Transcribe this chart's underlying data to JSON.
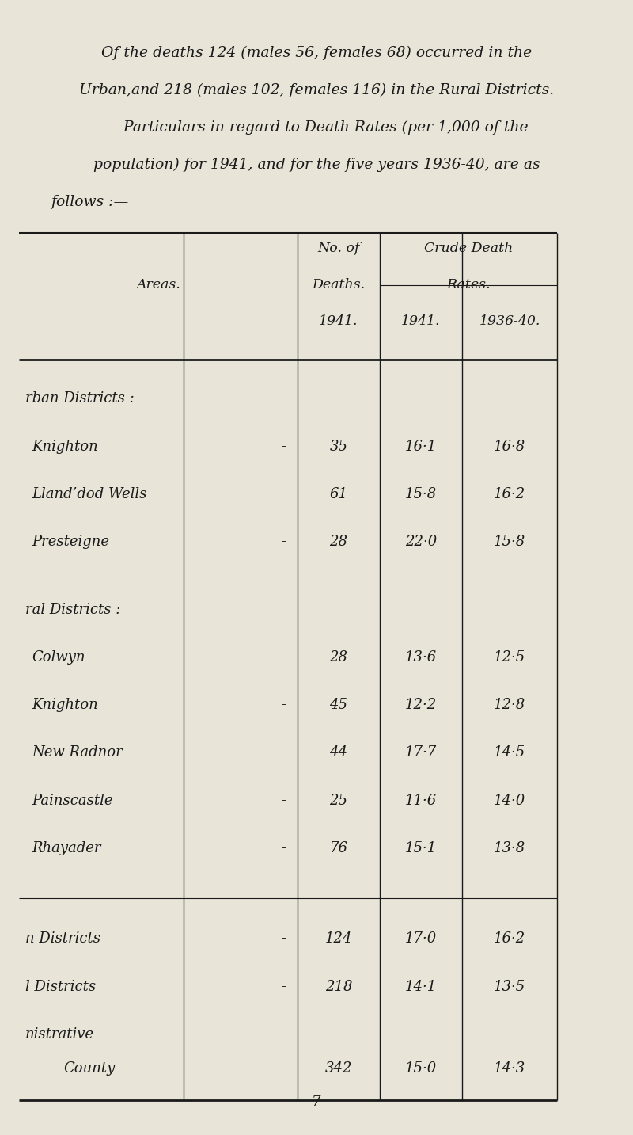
{
  "bg_color": "#e8e4d8",
  "text_color": "#1a1a1a",
  "intro_text": [
    "Of the deaths 124 (males 56, females 68) occurred in the",
    "Urban,and 218 (males 102, females 116) in the Rural Districts.",
    "    Particulars in regard to Death Rates (per 1,000 of the",
    "population) for 1941, and for the five years 1936-40, are as",
    "follows :—"
  ],
  "section_urban": "rban Districts :",
  "urban_rows": [
    [
      "Knighton",
      "-",
      "35",
      "16·1",
      "16·8"
    ],
    [
      "Lland’dod Wells",
      "",
      "61",
      "15·8",
      "16·2"
    ],
    [
      "Presteigne",
      "-",
      "28",
      "22·0",
      "15·8"
    ]
  ],
  "section_rural": "ral Districts :",
  "rural_rows": [
    [
      "Colwyn",
      "-",
      "28",
      "13·6",
      "12·5"
    ],
    [
      "Knighton",
      "-",
      "45",
      "12·2",
      "12·8"
    ],
    [
      "New Radnor",
      "-",
      "44",
      "17·7",
      "14·5"
    ],
    [
      "Painscastle",
      "-",
      "25",
      "11·6",
      "14·0"
    ],
    [
      "Rhayader",
      "-",
      "76",
      "15·1",
      "13·8"
    ]
  ],
  "summary_rows": [
    [
      "n Districts",
      "-",
      "124",
      "17·0",
      "16·2"
    ],
    [
      "l Districts",
      "-",
      "218",
      "14·1",
      "13·5"
    ],
    [
      "nistrative\nCounty",
      "",
      "342",
      "15·0",
      "14·3"
    ]
  ],
  "page_number": "7",
  "tl": 0.03,
  "tr": 0.88,
  "vl": [
    0.29,
    0.47,
    0.6,
    0.73,
    0.88
  ]
}
